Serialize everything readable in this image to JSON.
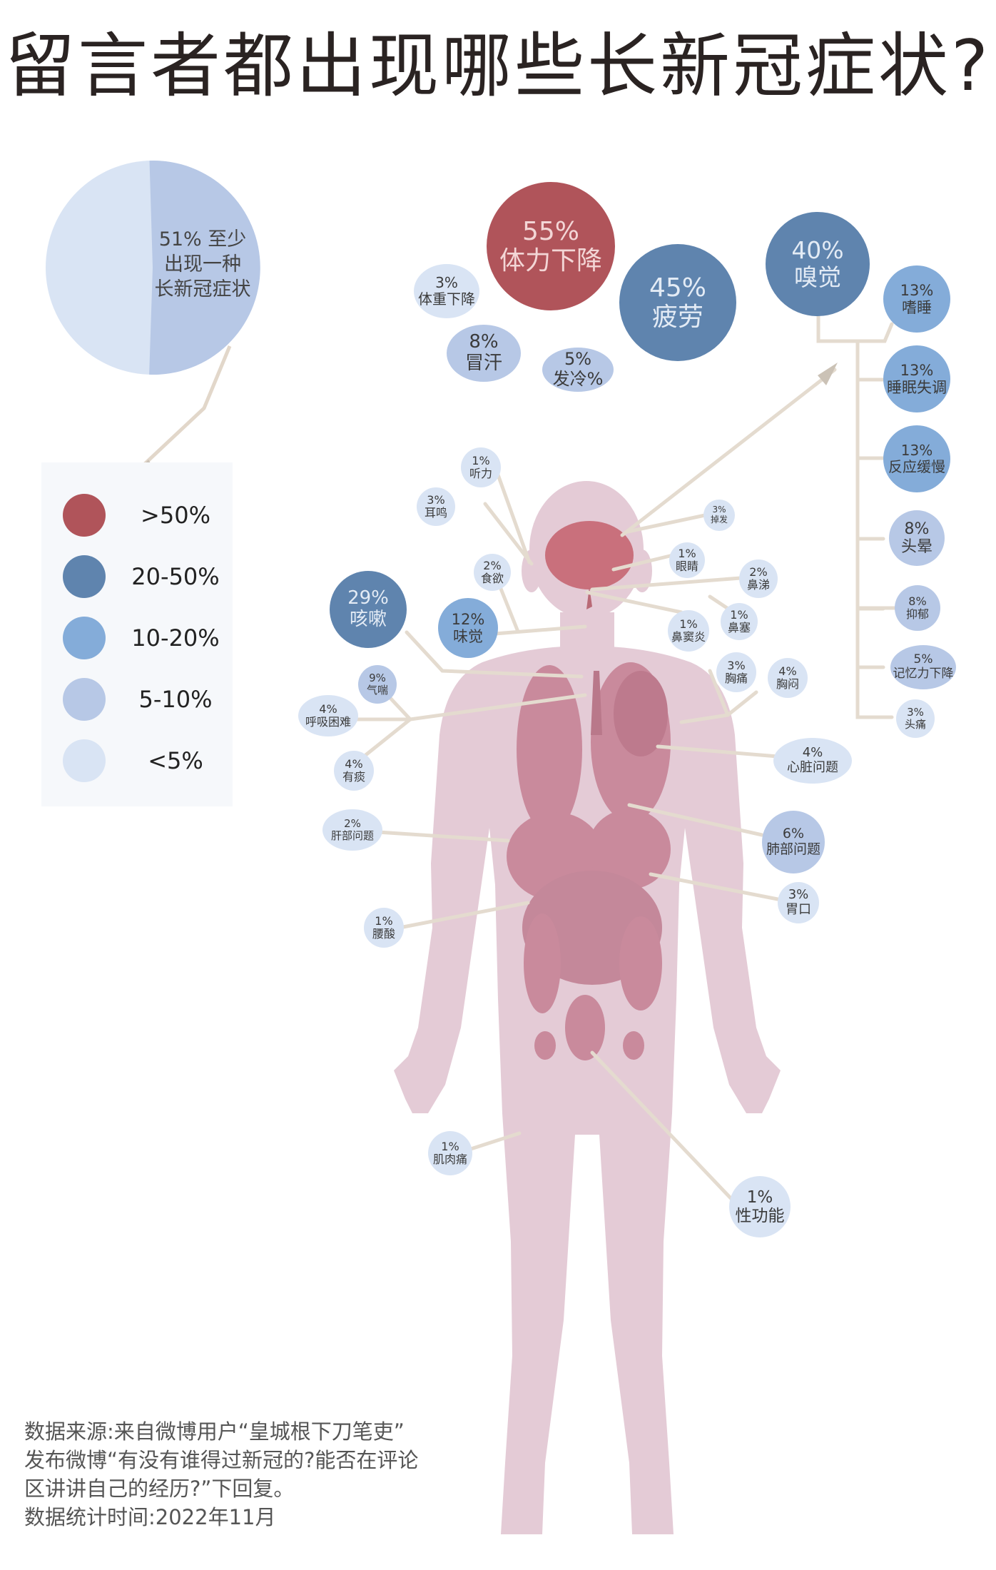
{
  "title": "留言者都出现哪些长新冠症状?",
  "summary": {
    "value": 51,
    "lines": [
      "51% 至少",
      "出现一种",
      "长新冠症状"
    ]
  },
  "legend": [
    {
      "label": ">50%",
      "color": "#b0545a"
    },
    {
      "label": "20-50%",
      "color": "#5f84ae"
    },
    {
      "label": "10-20%",
      "color": "#84acd9"
    },
    {
      "label": "5-10%",
      "color": "#b7c8e6"
    },
    {
      "label": "<5%",
      "color": "#d9e4f4"
    }
  ],
  "symptoms": [
    {
      "id": "stamina",
      "pct": "55%",
      "name": "体力下降"
    },
    {
      "id": "fatigue",
      "pct": "45%",
      "name": "疲劳"
    },
    {
      "id": "smell",
      "pct": "40%",
      "name": "嗅觉"
    },
    {
      "id": "weight",
      "pct": "3%",
      "name": "体重下降"
    },
    {
      "id": "sweat",
      "pct": "8%",
      "name": "冒汗"
    },
    {
      "id": "chills",
      "pct": "5%",
      "name": "发冷%"
    },
    {
      "id": "sleepy",
      "pct": "13%",
      "name": "嗜睡"
    },
    {
      "id": "insomnia",
      "pct": "13%",
      "name": "睡眠失调"
    },
    {
      "id": "slow",
      "pct": "13%",
      "name": "反应缓慢"
    },
    {
      "id": "dizzy",
      "pct": "8%",
      "name": "头晕"
    },
    {
      "id": "depress",
      "pct": "8%",
      "name": "抑郁"
    },
    {
      "id": "memory",
      "pct": "5%",
      "name": "记忆力下降"
    },
    {
      "id": "headache",
      "pct": "3%",
      "name": "头痛"
    },
    {
      "id": "hearing",
      "pct": "1%",
      "name": "听力"
    },
    {
      "id": "tinnitus",
      "pct": "3%",
      "name": "耳鸣"
    },
    {
      "id": "hairloss",
      "pct": "3%",
      "name": "掉发"
    },
    {
      "id": "eyes",
      "pct": "1%",
      "name": "眼睛"
    },
    {
      "id": "appetite",
      "pct": "2%",
      "name": "食欲"
    },
    {
      "id": "runnynose",
      "pct": "2%",
      "name": "鼻涕"
    },
    {
      "id": "cough",
      "pct": "29%",
      "name": "咳嗽"
    },
    {
      "id": "taste",
      "pct": "12%",
      "name": "味觉"
    },
    {
      "id": "sinusitis",
      "pct": "1%",
      "name": "鼻窦炎"
    },
    {
      "id": "stuffy",
      "pct": "1%",
      "name": "鼻塞"
    },
    {
      "id": "asthma",
      "pct": "9%",
      "name": "气喘"
    },
    {
      "id": "breath",
      "pct": "4%",
      "name": "呼吸困难"
    },
    {
      "id": "phlegm",
      "pct": "4%",
      "name": "有痰"
    },
    {
      "id": "chestpain",
      "pct": "3%",
      "name": "胸痛"
    },
    {
      "id": "chesttight",
      "pct": "4%",
      "name": "胸闷"
    },
    {
      "id": "heart",
      "pct": "4%",
      "name": "心脏问题"
    },
    {
      "id": "liver",
      "pct": "2%",
      "name": "肝部问题"
    },
    {
      "id": "lung",
      "pct": "6%",
      "name": "肺部问题"
    },
    {
      "id": "stomach",
      "pct": "3%",
      "name": "胃口"
    },
    {
      "id": "backache",
      "pct": "1%",
      "name": "腰酸"
    },
    {
      "id": "muscle",
      "pct": "1%",
      "name": "肌肉痛"
    },
    {
      "id": "sexual",
      "pct": "1%",
      "name": "性功能"
    }
  ],
  "source": [
    "数据来源:来自微博用户“皇城根下刀笔吏”",
    "发布微博“有没有谁得过新冠的?能否在评论",
    "区讲讲自己的经历?”下回复。",
    "数据统计时间:2022年11月"
  ]
}
